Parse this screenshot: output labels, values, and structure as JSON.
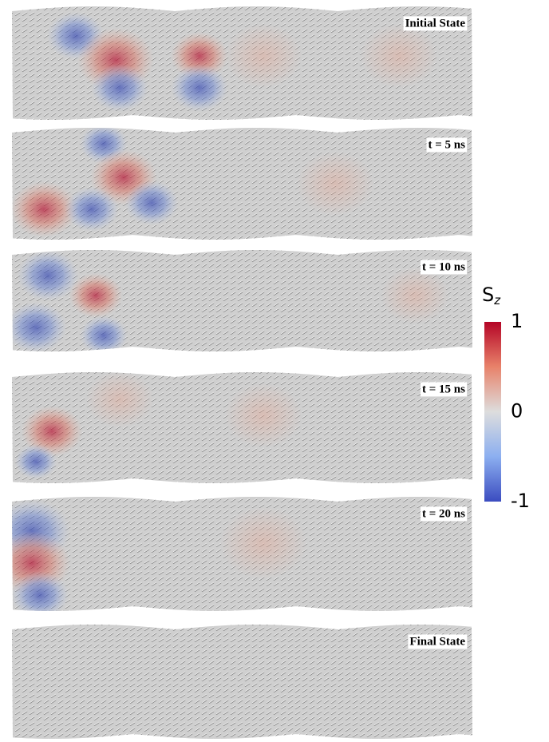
{
  "panels": [
    {
      "label": "Initial State"
    },
    {
      "label": "t = 5 ns"
    },
    {
      "label": "t = 10 ns"
    },
    {
      "label": "t = 15 ns"
    },
    {
      "label": "t = 20 ns"
    },
    {
      "label": "Final State"
    }
  ],
  "colorbar": {
    "title": "S",
    "subscript": "z",
    "ticks": [
      1,
      0,
      -1
    ]
  }
}
